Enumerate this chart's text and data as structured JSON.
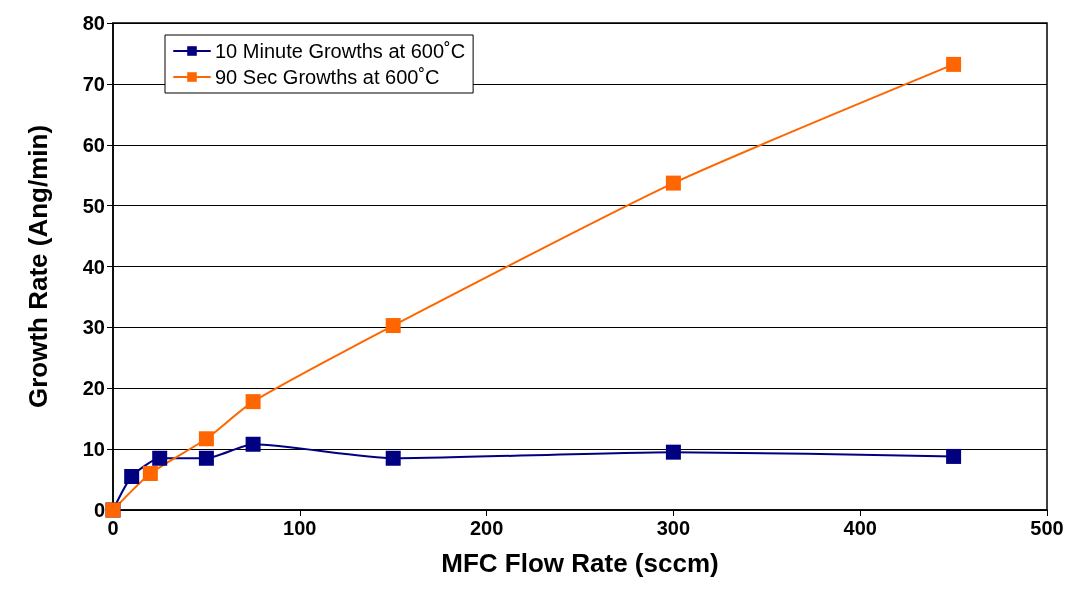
{
  "chart_data": {
    "type": "line",
    "xlabel": "MFC Flow Rate (sccm)",
    "ylabel": "Growth Rate (Ang/min)",
    "xlim": [
      0,
      500
    ],
    "xticks": [
      0,
      100,
      200,
      300,
      400,
      500
    ],
    "ylim": [
      0,
      80
    ],
    "yticks": [
      0,
      10,
      20,
      30,
      40,
      50,
      60,
      70,
      80
    ],
    "grid": "y",
    "legend": "top left",
    "marker": "square",
    "line_style": "solid",
    "series": [
      {
        "name": "10 Minute Growths at 600˚C",
        "color": "#000080",
        "x": [
          0,
          10,
          25,
          50,
          75,
          150,
          300,
          450
        ],
        "values": [
          0,
          5.5,
          8.5,
          8.5,
          10.8,
          8.5,
          9.5,
          8.8
        ]
      },
      {
        "name": "90 Sec Growths at 600˚C",
        "color": "#ff6600",
        "x": [
          0,
          20,
          50,
          75,
          150,
          300,
          450
        ],
        "values": [
          0,
          6,
          11.7,
          17.8,
          30.3,
          53.7,
          73.2
        ]
      }
    ]
  }
}
